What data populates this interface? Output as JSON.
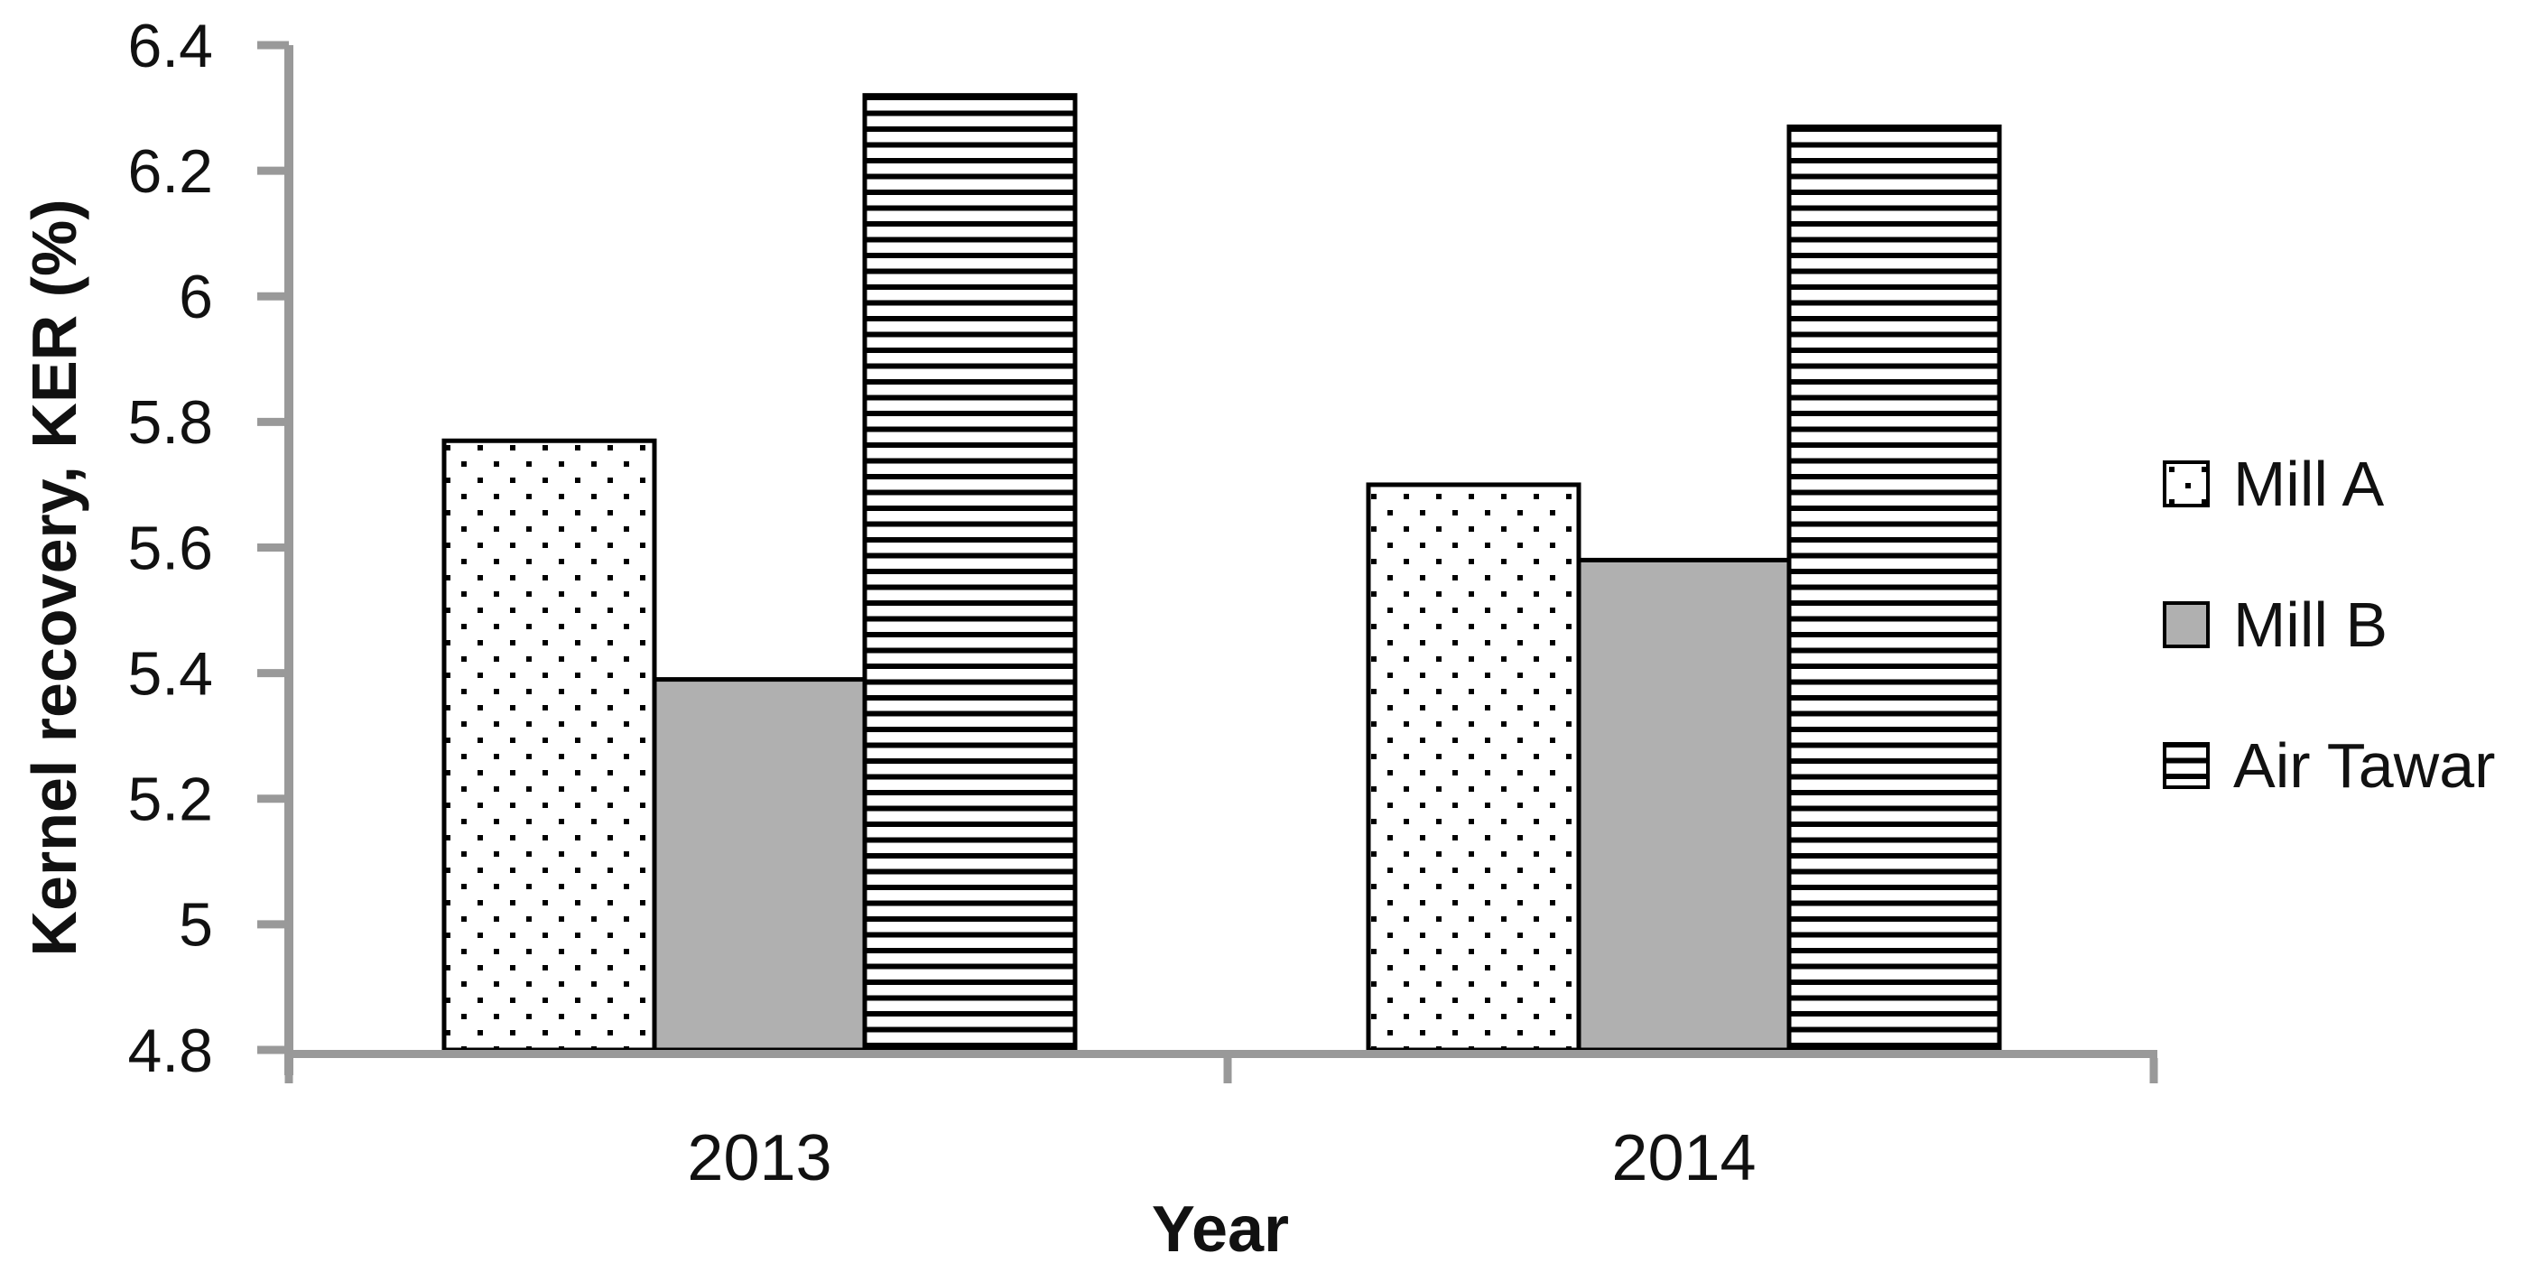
{
  "chart_data": {
    "type": "bar",
    "title": "",
    "xlabel": "Year",
    "ylabel": "Kernel recovery, KER (%)",
    "categories": [
      "2013",
      "2014"
    ],
    "series": [
      {
        "name": "Mill A",
        "pattern": "dots",
        "fill": "#ffffff",
        "values": [
          5.77,
          5.7
        ]
      },
      {
        "name": "Mill B",
        "pattern": "solid",
        "fill": "#b0b0b0",
        "values": [
          5.39,
          5.58
        ]
      },
      {
        "name": "Air Tawar",
        "pattern": "hlines",
        "fill": "#ffffff",
        "values": [
          6.32,
          6.27
        ]
      }
    ],
    "ylim": [
      4.8,
      6.4
    ],
    "ytick_step": 0.2,
    "ytick_labels": [
      "4.8",
      "5",
      "5.2",
      "5.4",
      "5.6",
      "5.8",
      "6",
      "6.2",
      "6.4"
    ],
    "grid": false,
    "legend_position": "right-middle"
  },
  "colors": {
    "axis": "#999999",
    "text": "#111111",
    "pattern_ink": "#000000",
    "bar_gray": "#b0b0b0",
    "bar_border": "#000000",
    "background": "#ffffff"
  }
}
